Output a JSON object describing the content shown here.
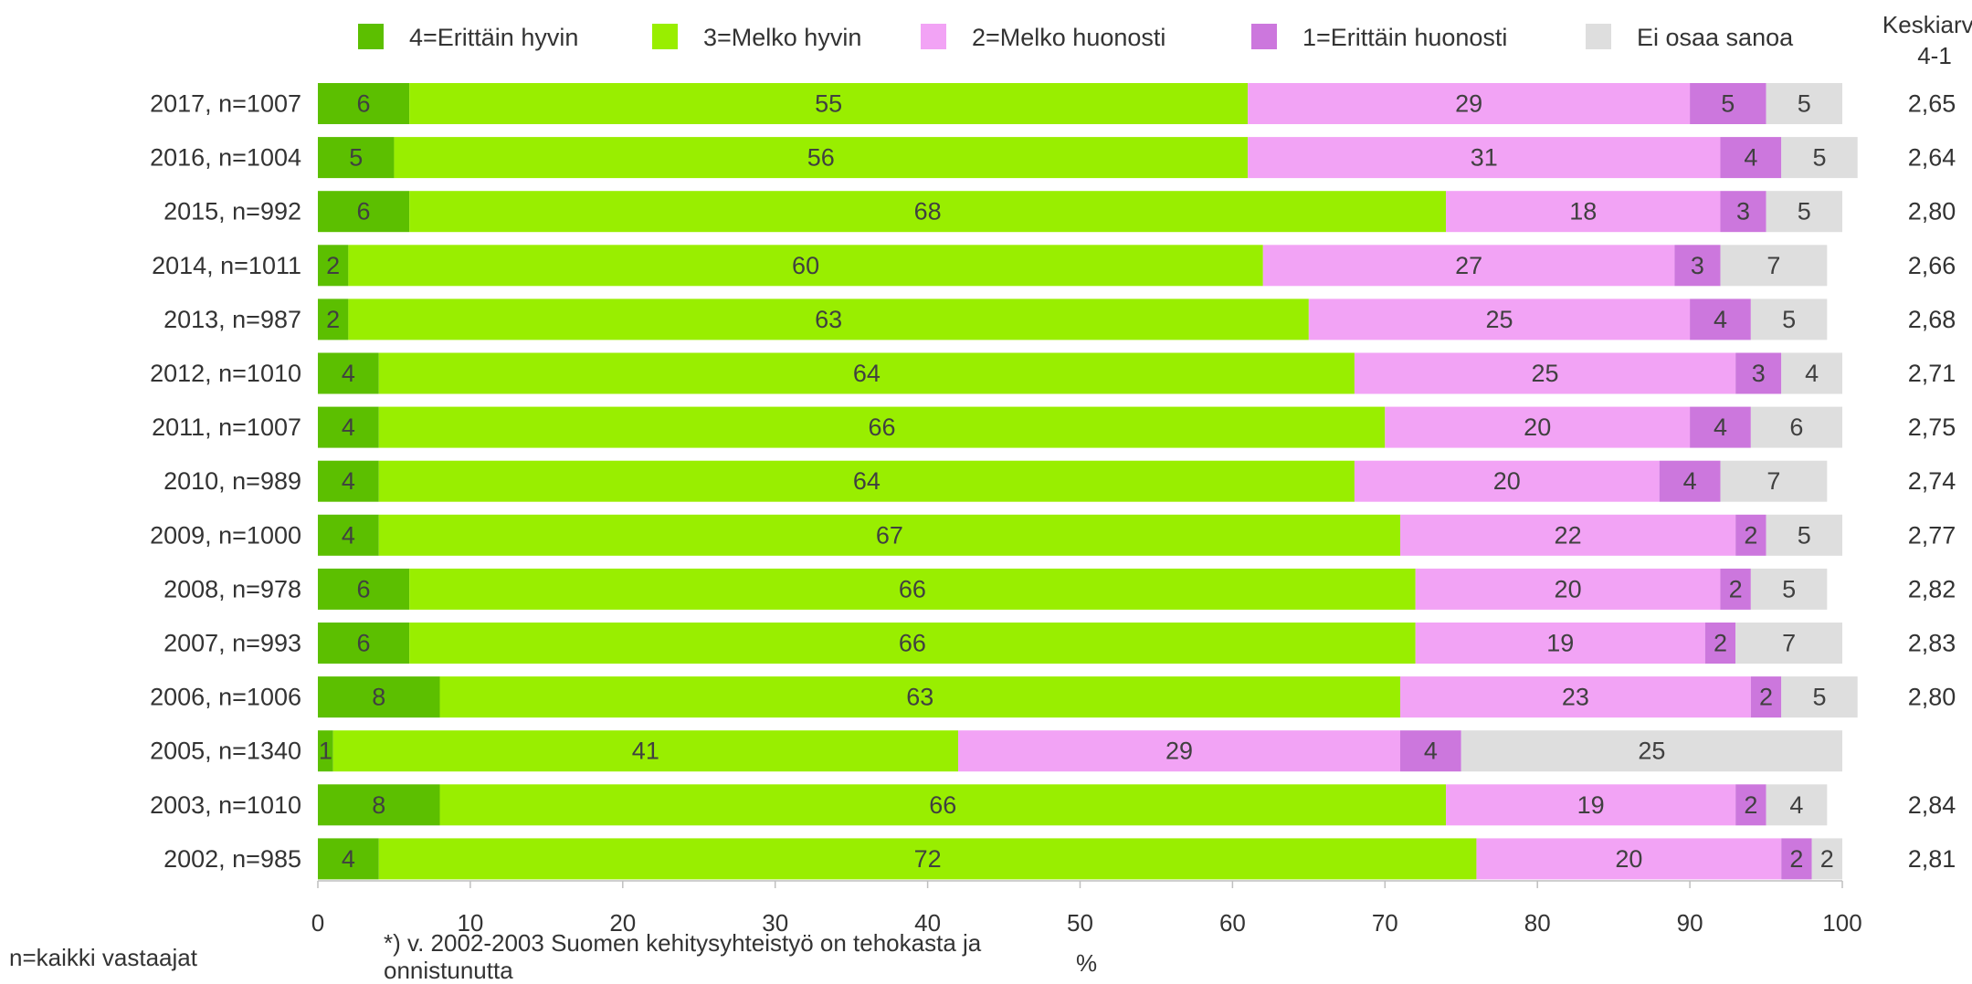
{
  "chart_data": {
    "type": "bar",
    "orientation": "horizontal",
    "stacked": true,
    "legend": [
      "4=Erittäin hyvin",
      "3=Melko hyvin",
      "2=Melko huonosti",
      "1=Erittäin huonosti",
      "Ei osaa sanoa"
    ],
    "colors": [
      "#5cbf00",
      "#99ee00",
      "#f2a3f5",
      "#cc77dd",
      "#dedede"
    ],
    "categories": [
      "2017, n=1007",
      "2016, n=1004",
      "2015, n=992",
      "2014, n=1011",
      "2013, n=987",
      "2012, n=1010",
      "2011, n=1007",
      "2010, n=989",
      "2009, n=1000",
      "2008, n=978",
      "2007, n=993",
      "2006, n=1006",
      "2005, n=1340",
      "2003, n=1010",
      "2002, n=985"
    ],
    "series": [
      {
        "name": "4=Erittäin hyvin",
        "values": [
          6,
          5,
          6,
          2,
          2,
          4,
          4,
          4,
          4,
          6,
          6,
          8,
          1,
          8,
          4
        ]
      },
      {
        "name": "3=Melko hyvin",
        "values": [
          55,
          56,
          68,
          60,
          63,
          64,
          66,
          64,
          67,
          66,
          66,
          63,
          41,
          66,
          72
        ]
      },
      {
        "name": "2=Melko huonosti",
        "values": [
          29,
          31,
          18,
          27,
          25,
          25,
          20,
          20,
          22,
          20,
          19,
          23,
          29,
          19,
          20
        ]
      },
      {
        "name": "1=Erittäin huonosti",
        "values": [
          5,
          4,
          3,
          3,
          4,
          3,
          4,
          4,
          2,
          2,
          2,
          2,
          4,
          2,
          2
        ]
      },
      {
        "name": "Ei osaa sanoa",
        "values": [
          5,
          5,
          5,
          7,
          5,
          4,
          6,
          7,
          5,
          5,
          7,
          5,
          25,
          4,
          2
        ]
      }
    ],
    "average_title": [
      "Keskiarvo",
      "4-1"
    ],
    "averages": [
      "2,65",
      "2,64",
      "2,80",
      "2,66",
      "2,68",
      "2,71",
      "2,75",
      "2,74",
      "2,77",
      "2,82",
      "2,83",
      "2,80",
      "",
      "2,84",
      "2,81"
    ],
    "xlim": [
      0,
      100
    ],
    "xticks": [
      "0",
      "10",
      "20",
      "30",
      "40",
      "50",
      "60",
      "70",
      "80",
      "90",
      "100"
    ],
    "xlabel": "%",
    "grid": false,
    "legend_position": "top"
  },
  "footer": {
    "left": "n=kaikki vastaajat",
    "note": "*) v. 2002-2003 Suomen kehitysyhteistyö on tehokasta ja onnistunutta"
  }
}
